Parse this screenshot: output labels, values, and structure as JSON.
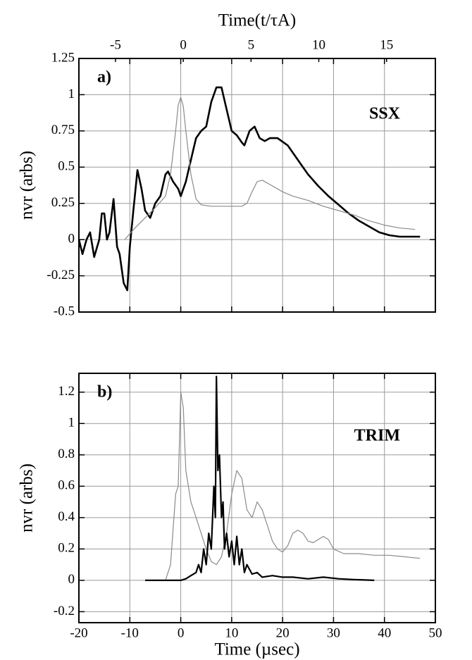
{
  "chart_data": [
    {
      "type": "line",
      "panel_label": "a)",
      "annotation": "SSX",
      "ylabel": "nvr (arbs)",
      "x2label": "Time(t/τA)",
      "x2lim": [
        -7.7,
        18.6
      ],
      "x2ticks": [
        -5,
        0,
        5,
        10,
        15
      ],
      "xlim": [
        -20,
        50
      ],
      "ylim": [
        -0.5,
        1.25
      ],
      "yticks": [
        1.25,
        1.0,
        0.75,
        0.5,
        0.25,
        0.0,
        -0.25,
        -0.5
      ],
      "grid": true,
      "series": [
        {
          "color": "#000000",
          "width": 2.6,
          "x": [
            -20,
            -19.3,
            -18.5,
            -17.8,
            -17,
            -16,
            -15.5,
            -15,
            -14.5,
            -14,
            -13.2,
            -12.5,
            -12,
            -11.2,
            -10.5,
            -10,
            -9.3,
            -8.5,
            -7.7,
            -7,
            -6,
            -5,
            -4,
            -3,
            -2.5,
            -1.5,
            -0.5,
            0,
            1,
            2,
            3,
            4,
            5,
            6,
            7,
            8,
            9,
            10,
            11,
            12,
            12.5,
            13.5,
            14.5,
            15.5,
            16.5,
            17.5,
            19,
            21,
            23,
            25,
            27,
            29,
            31,
            33,
            35,
            37,
            39,
            41,
            43,
            45,
            47
          ],
          "values": [
            0.0,
            -0.1,
            0.0,
            0.05,
            -0.12,
            0.0,
            0.18,
            0.18,
            0.0,
            0.05,
            0.28,
            -0.05,
            -0.1,
            -0.3,
            -0.35,
            -0.05,
            0.2,
            0.48,
            0.35,
            0.2,
            0.15,
            0.25,
            0.3,
            0.45,
            0.47,
            0.4,
            0.35,
            0.3,
            0.4,
            0.55,
            0.7,
            0.75,
            0.78,
            0.95,
            1.05,
            1.05,
            0.9,
            0.75,
            0.72,
            0.67,
            0.65,
            0.75,
            0.78,
            0.7,
            0.68,
            0.7,
            0.7,
            0.65,
            0.55,
            0.45,
            0.37,
            0.3,
            0.24,
            0.18,
            0.13,
            0.09,
            0.05,
            0.03,
            0.02,
            0.02,
            0.02
          ]
        },
        {
          "color": "#8a8a8a",
          "width": 1.2,
          "x": [
            -11,
            -9,
            -7,
            -5,
            -3,
            -2,
            -1,
            -0.5,
            0,
            0.5,
            1,
            2,
            3,
            4,
            6,
            8,
            10,
            12,
            13,
            14,
            15,
            16,
            18,
            20,
            22,
            25,
            28,
            31,
            34,
            37,
            40,
            43,
            46
          ],
          "values": [
            0.0,
            0.08,
            0.15,
            0.22,
            0.3,
            0.45,
            0.75,
            0.93,
            0.98,
            0.92,
            0.75,
            0.45,
            0.28,
            0.24,
            0.23,
            0.23,
            0.23,
            0.23,
            0.25,
            0.33,
            0.4,
            0.41,
            0.37,
            0.33,
            0.3,
            0.27,
            0.23,
            0.2,
            0.17,
            0.13,
            0.1,
            0.08,
            0.07
          ]
        }
      ]
    },
    {
      "type": "line",
      "panel_label": "b)",
      "annotation": "TRIM",
      "ylabel": "nvr (arbs)",
      "xlabel": "Time (µsec)",
      "xlim": [
        -20,
        50
      ],
      "xticks": [
        -20,
        -10,
        0,
        10,
        20,
        30,
        40,
        50
      ],
      "ylim": [
        -0.27,
        1.32
      ],
      "yticks": [
        1.2,
        1.0,
        0.8,
        0.6,
        0.4,
        0.2,
        0.0,
        -0.2
      ],
      "grid": true,
      "series": [
        {
          "color": "#8a8a8a",
          "width": 1.2,
          "x": [
            -3,
            -2,
            -1,
            -0.5,
            0,
            0.5,
            1,
            2,
            3,
            4,
            5,
            6,
            7,
            8,
            9,
            10,
            11,
            12,
            13,
            14,
            15,
            16,
            17,
            18,
            19,
            20,
            21,
            22,
            23,
            24,
            25,
            26,
            27,
            28,
            29,
            30,
            32,
            35,
            38,
            41,
            44,
            47
          ],
          "values": [
            0.0,
            0.1,
            0.55,
            0.6,
            1.2,
            1.1,
            0.7,
            0.5,
            0.4,
            0.3,
            0.2,
            0.12,
            0.1,
            0.15,
            0.3,
            0.55,
            0.7,
            0.65,
            0.45,
            0.4,
            0.5,
            0.45,
            0.35,
            0.25,
            0.2,
            0.18,
            0.22,
            0.3,
            0.32,
            0.3,
            0.25,
            0.24,
            0.26,
            0.28,
            0.26,
            0.2,
            0.17,
            0.17,
            0.16,
            0.16,
            0.15,
            0.14
          ]
        },
        {
          "color": "#000000",
          "width": 2.2,
          "x": [
            -7,
            0,
            1,
            2,
            3,
            3.5,
            4,
            4.5,
            5,
            5.5,
            6,
            6.5,
            6.8,
            7,
            7.3,
            7.6,
            8,
            8.3,
            8.6,
            9,
            9.5,
            10,
            10.5,
            11,
            11.5,
            12,
            12.5,
            13,
            14,
            15,
            16,
            18,
            20,
            22,
            25,
            28,
            31,
            34,
            38
          ],
          "values": [
            0.0,
            0.0,
            0.01,
            0.03,
            0.05,
            0.1,
            0.05,
            0.2,
            0.1,
            0.3,
            0.2,
            0.6,
            0.4,
            1.3,
            0.7,
            0.8,
            0.4,
            0.5,
            0.2,
            0.3,
            0.15,
            0.25,
            0.1,
            0.28,
            0.1,
            0.2,
            0.05,
            0.1,
            0.04,
            0.05,
            0.02,
            0.03,
            0.02,
            0.02,
            0.01,
            0.02,
            0.01,
            0.005,
            0.0
          ]
        }
      ]
    }
  ]
}
